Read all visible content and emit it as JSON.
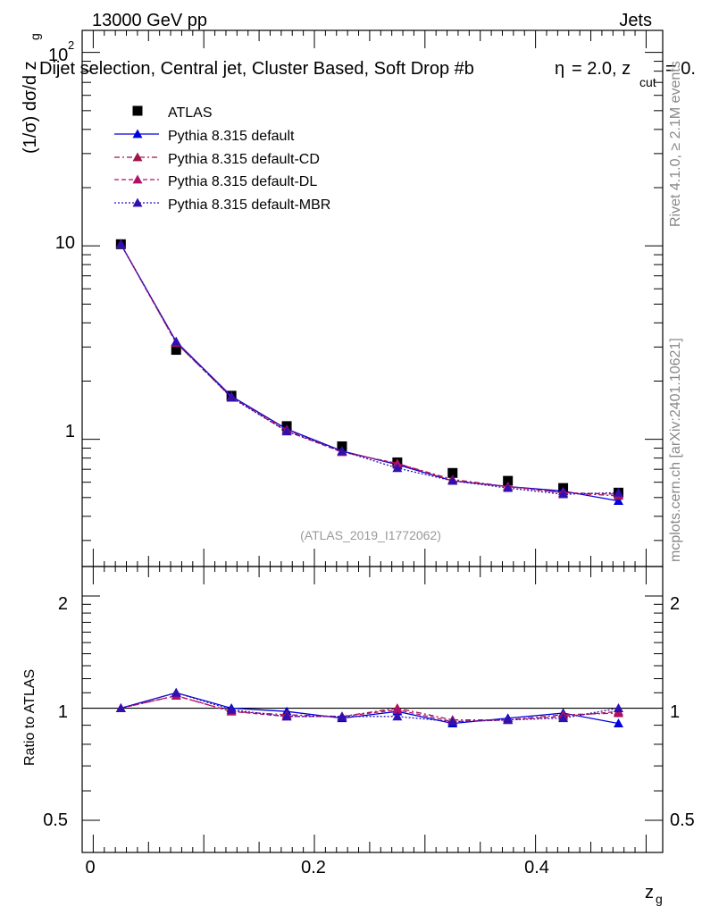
{
  "header": {
    "energy_label": "13000 GeV pp",
    "category_label": "Jets",
    "title": "Dijet selection, Central jet, Cluster Based, Soft Drop #b",
    "title_cut": "= 2.0, z",
    "title_cut_sub": "cut",
    "title_cut_tail": "= 0.",
    "eta_glyph": "η"
  },
  "side_labels": {
    "rivet": "Rivet 4.1.0, ≥ 2.1M events",
    "mcplots": "mcplots.cern.ch [arXiv:2401.10621]"
  },
  "analysis_id": "(ATLAS_2019_I1772062)",
  "axes": {
    "y_main_label": "(1/σ) dσ/d z",
    "y_main_label_sub": "g",
    "y_ratio_label": "Ratio to ATLAS",
    "x_label": "z",
    "x_label_sub": "g",
    "y_main_ticks": [
      {
        "label": "10",
        "value": 10
      },
      {
        "label": "1",
        "value": 1
      }
    ],
    "y_main_top_tick": {
      "base": "10",
      "exp": "2"
    },
    "y_ratio_ticks": [
      "2",
      "1",
      "0.5"
    ],
    "x_ticks": [
      "0",
      "0.2",
      "0.4"
    ]
  },
  "chart_data": [
    {
      "type": "line",
      "panel": "main",
      "yscale": "log",
      "xlim": [
        -0.01,
        0.515
      ],
      "ylim": [
        0.22,
        130
      ],
      "x": [
        0.025,
        0.075,
        0.125,
        0.175,
        0.225,
        0.275,
        0.325,
        0.375,
        0.425,
        0.475
      ],
      "series": [
        {
          "name": "ATLAS",
          "style": "data",
          "color": "#000000",
          "values": [
            10.2,
            2.9,
            1.68,
            1.17,
            0.92,
            0.76,
            0.67,
            0.61,
            0.56,
            0.53
          ]
        },
        {
          "name": "Pythia 8.315 default",
          "style": "solid",
          "color": "#0000dd",
          "values": [
            10.2,
            3.2,
            1.67,
            1.13,
            0.87,
            0.74,
            0.61,
            0.57,
            0.54,
            0.48
          ]
        },
        {
          "name": "Pythia 8.315 default-CD",
          "style": "dashdot",
          "color": "#a0144d",
          "values": [
            10.2,
            3.15,
            1.65,
            1.12,
            0.86,
            0.75,
            0.62,
            0.57,
            0.53,
            0.51
          ]
        },
        {
          "name": "Pythia 8.315 default-DL",
          "style": "dashed",
          "color": "#b0106a",
          "values": [
            10.2,
            3.15,
            1.65,
            1.1,
            0.86,
            0.75,
            0.61,
            0.57,
            0.53,
            0.52
          ]
        },
        {
          "name": "Pythia 8.315 default-MBR",
          "style": "dotted",
          "color": "#3010b0",
          "values": [
            10.2,
            3.2,
            1.64,
            1.1,
            0.87,
            0.71,
            0.61,
            0.56,
            0.52,
            0.53
          ]
        }
      ]
    },
    {
      "type": "line",
      "panel": "ratio",
      "yscale": "log",
      "xlim": [
        -0.01,
        0.515
      ],
      "ylim": [
        0.41,
        2.4
      ],
      "x": [
        0.025,
        0.075,
        0.125,
        0.175,
        0.225,
        0.275,
        0.325,
        0.375,
        0.425,
        0.475
      ],
      "series": [
        {
          "name": "Pythia 8.315 default",
          "style": "solid",
          "color": "#0000dd",
          "values": [
            1.0,
            1.1,
            1.0,
            0.98,
            0.94,
            0.98,
            0.91,
            0.94,
            0.97,
            0.91
          ]
        },
        {
          "name": "Pythia 8.315 default-CD",
          "style": "dashdot",
          "color": "#a0144d",
          "values": [
            1.0,
            1.08,
            0.98,
            0.96,
            0.95,
            1.0,
            0.93,
            0.93,
            0.96,
            0.97
          ]
        },
        {
          "name": "Pythia 8.315 default-DL",
          "style": "dashed",
          "color": "#b0106a",
          "values": [
            1.0,
            1.08,
            0.98,
            0.95,
            0.95,
            0.99,
            0.92,
            0.93,
            0.95,
            0.98
          ]
        },
        {
          "name": "Pythia 8.315 default-MBR",
          "style": "dotted",
          "color": "#3010b0",
          "values": [
            1.0,
            1.1,
            0.99,
            0.95,
            0.95,
            0.95,
            0.92,
            0.93,
            0.94,
            1.0
          ]
        }
      ]
    }
  ]
}
